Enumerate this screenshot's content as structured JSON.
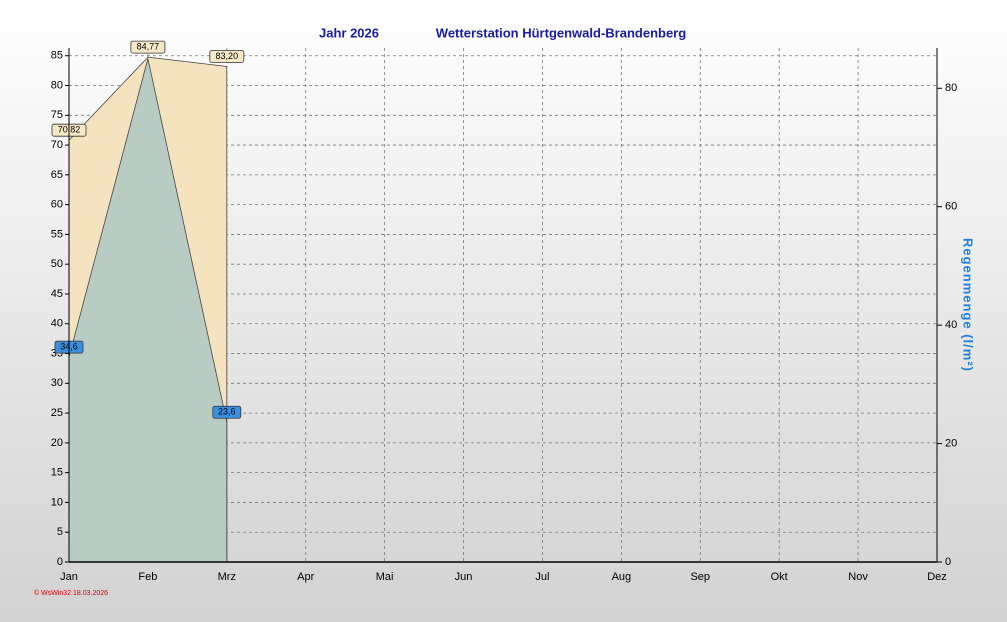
{
  "chart_data": {
    "type": "area",
    "title": "Jahr  2026",
    "subtitle": "Wetterstation Hürtgenwald-Brandenberg",
    "y2label": "Regenmenge  (l/m²)",
    "footer": "© WsWin32  18.03.2026",
    "categories": [
      "Jan",
      "Feb",
      "Mrz",
      "Apr",
      "Mai",
      "Jun",
      "Jul",
      "Aug",
      "Sep",
      "Okt",
      "Nov",
      "Dez"
    ],
    "series": [
      {
        "color": "#f5e3bf",
        "values": [
          70.82,
          84.77,
          83.2,
          null,
          null,
          null,
          null,
          null,
          null,
          null,
          null,
          null
        ],
        "value_labels": [
          "70,82",
          "84,77",
          "83,20",
          null,
          null,
          null,
          null,
          null,
          null,
          null,
          null,
          null
        ],
        "label_color": "#f7e8c8"
      },
      {
        "color": "#b3c9c4",
        "axis": "y2",
        "values": [
          34.6,
          85,
          23.6,
          null,
          null,
          null,
          null,
          null,
          null,
          null,
          null,
          null
        ],
        "value_labels": [
          "34,6",
          null,
          "23,6",
          null,
          null,
          null,
          null,
          null,
          null,
          null,
          null,
          null
        ],
        "label_color": "#3a8fe0"
      }
    ],
    "ylim": [
      0,
      86.3
    ],
    "yticks": [
      0,
      5,
      10,
      15,
      20,
      25,
      30,
      35,
      40,
      45,
      50,
      55,
      60,
      65,
      70,
      75,
      80,
      85
    ],
    "y2lim": [
      0,
      86.8
    ],
    "y2ticks": [
      0,
      20,
      40,
      60,
      80
    ],
    "grid": true
  }
}
